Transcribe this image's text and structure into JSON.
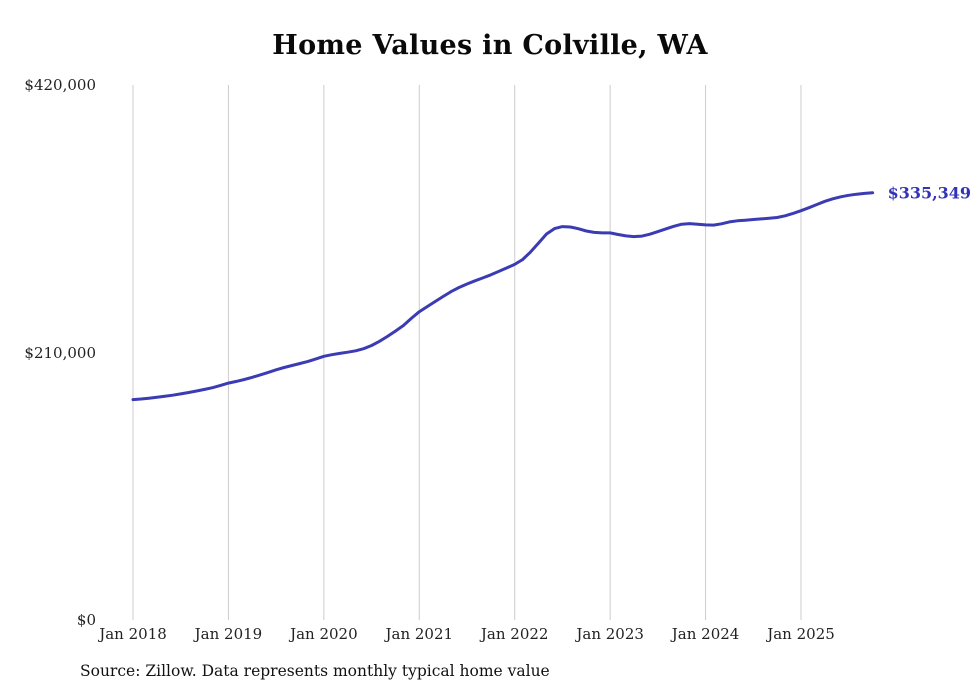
{
  "title": "Home Values in Colville, WA",
  "end_label": "$335,349",
  "source": "Source: Zillow. Data represents monthly typical home value",
  "colors": {
    "line": "#3b3bb4",
    "end_label": "#3333b8",
    "grid": "#cccccc",
    "tick_text": "#222222",
    "title_text": "#0a0a0a"
  },
  "chart_data": {
    "type": "line",
    "title": "Home Values in Colville, WA",
    "xlabel": "",
    "ylabel": "",
    "ylim": [
      0,
      420000
    ],
    "grid": "vertical-only",
    "legend": "none",
    "x_start": "2018-01",
    "x_interval": "monthly",
    "x_tick_labels": [
      "Jan 2018",
      "Jan 2019",
      "Jan 2020",
      "Jan 2021",
      "Jan 2022",
      "Jan 2023",
      "Jan 2024",
      "Jan 2025"
    ],
    "y_ticks": [
      {
        "label": "$0",
        "value": 0
      },
      {
        "label": "$210,000",
        "value": 210000
      },
      {
        "label": "$420,000",
        "value": 420000
      }
    ],
    "end_value": 335349,
    "series": [
      {
        "name": "Monthly typical home value",
        "values": [
          173000,
          173500,
          174100,
          174800,
          175600,
          176500,
          177500,
          178600,
          179800,
          181000,
          182400,
          184200,
          186000,
          187300,
          188800,
          190500,
          192400,
          194400,
          196400,
          198200,
          199800,
          201400,
          203000,
          205000,
          207000,
          208300,
          209300,
          210200,
          211300,
          213000,
          215500,
          218800,
          222600,
          226800,
          231200,
          236800,
          242000,
          246000,
          250000,
          254000,
          257800,
          261000,
          263800,
          266300,
          268600,
          271000,
          273700,
          276400,
          279200,
          283000,
          289000,
          296000,
          303000,
          307300,
          308800,
          308500,
          307200,
          305400,
          304300,
          303900,
          303900,
          302600,
          301500,
          301000,
          301400,
          302900,
          304900,
          307000,
          309100,
          310700,
          311200,
          310700,
          310200,
          310000,
          311000,
          312500,
          313400,
          313900,
          314400,
          314900,
          315400,
          316000,
          317300,
          319200,
          321300,
          323700,
          326200,
          328700,
          330700,
          332200,
          333400,
          334300,
          334900,
          335349
        ]
      }
    ]
  }
}
